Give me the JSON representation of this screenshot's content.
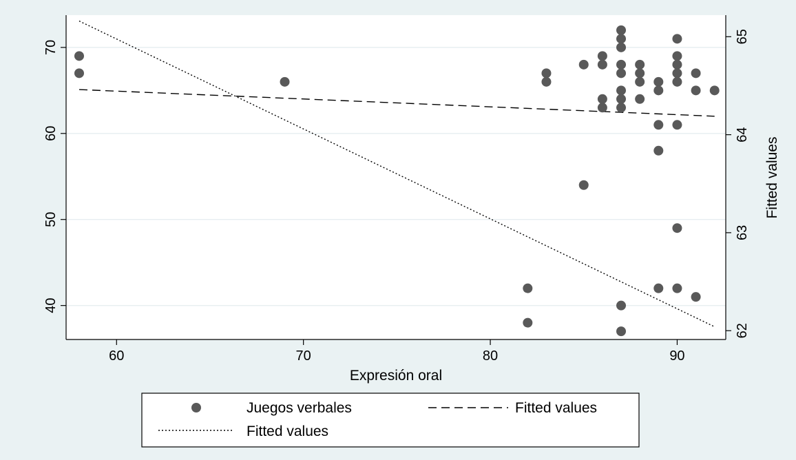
{
  "chart_data": {
    "type": "scatter",
    "xlabel": "Expresión oral",
    "ylabel": "",
    "y2label": "Fitted values",
    "xlim": [
      57.3,
      92.6
    ],
    "ylim": [
      36.05,
      73.75
    ],
    "y2lim": [
      61.91,
      65.22
    ],
    "x_ticks": [
      60,
      70,
      80,
      90
    ],
    "y_ticks": [
      40,
      50,
      60,
      70
    ],
    "y2_ticks": [
      62,
      63,
      64,
      65
    ],
    "grid": "horizontal",
    "legend_position": "bottom",
    "series": [
      {
        "name": "Juegos verbales",
        "kind": "scatter",
        "axis": "left",
        "points": [
          [
            58,
            69
          ],
          [
            58,
            67
          ],
          [
            69,
            66
          ],
          [
            82,
            42
          ],
          [
            82,
            38
          ],
          [
            83,
            67
          ],
          [
            83,
            66
          ],
          [
            85,
            68
          ],
          [
            85,
            54
          ],
          [
            86,
            69
          ],
          [
            86,
            68
          ],
          [
            86,
            64
          ],
          [
            86,
            63
          ],
          [
            87,
            72
          ],
          [
            87,
            71
          ],
          [
            87,
            70
          ],
          [
            87,
            68
          ],
          [
            87,
            67
          ],
          [
            87,
            65
          ],
          [
            87,
            64
          ],
          [
            87,
            63
          ],
          [
            87,
            40
          ],
          [
            87,
            37
          ],
          [
            88,
            68
          ],
          [
            88,
            67
          ],
          [
            88,
            66
          ],
          [
            88,
            64
          ],
          [
            89,
            66
          ],
          [
            89,
            65
          ],
          [
            89,
            61
          ],
          [
            89,
            58
          ],
          [
            89,
            42
          ],
          [
            90,
            71
          ],
          [
            90,
            69
          ],
          [
            90,
            68
          ],
          [
            90,
            67
          ],
          [
            90,
            66
          ],
          [
            90,
            61
          ],
          [
            90,
            49
          ],
          [
            90,
            42
          ],
          [
            91,
            67
          ],
          [
            91,
            65
          ],
          [
            91,
            41
          ],
          [
            92,
            65
          ]
        ],
        "color": "#595959"
      },
      {
        "name": "Fitted values",
        "kind": "line",
        "style": "dashed",
        "axis": "left",
        "points": [
          [
            58,
            65.1
          ],
          [
            92,
            62.0
          ]
        ],
        "color": "#000000"
      },
      {
        "name": "Fitted values",
        "kind": "line",
        "style": "dotted",
        "axis": "right",
        "points": [
          [
            58,
            65.16
          ],
          [
            92,
            62.04
          ]
        ],
        "color": "#000000"
      }
    ]
  }
}
